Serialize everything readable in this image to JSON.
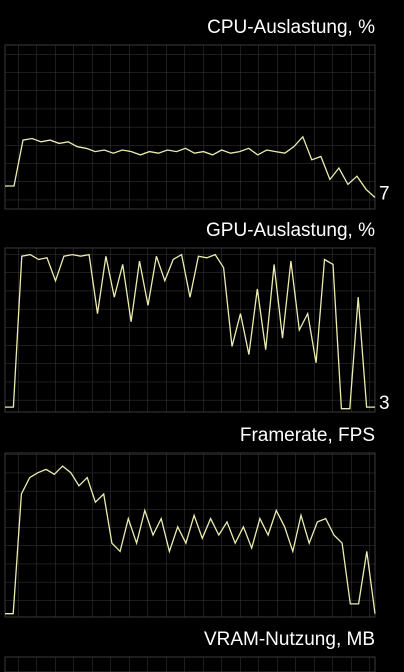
{
  "chart_data": [
    {
      "type": "line",
      "title": "CPU-Auslastung, %",
      "ylim": [
        0,
        100
      ],
      "color": "#ecebb0",
      "current_value_label": true,
      "values": [
        14,
        14,
        42,
        43,
        41,
        42,
        40,
        41,
        38,
        37,
        35,
        36,
        34,
        36,
        35,
        33,
        35,
        34,
        36,
        35,
        37,
        34,
        35,
        33,
        36,
        34,
        35,
        37,
        33,
        36,
        35,
        34,
        38,
        44,
        30,
        32,
        18,
        25,
        15,
        20,
        12,
        7
      ]
    },
    {
      "type": "line",
      "title": "GPU-Auslastung, %",
      "ylim": [
        0,
        100
      ],
      "color": "#ecebb0",
      "current_value_label": true,
      "values": [
        3,
        3,
        95,
        96,
        93,
        94,
        80,
        95,
        96,
        95,
        96,
        60,
        95,
        70,
        90,
        55,
        92,
        65,
        95,
        80,
        93,
        96,
        70,
        95,
        94,
        96,
        88,
        40,
        60,
        35,
        75,
        38,
        90,
        45,
        92,
        50,
        60,
        30,
        93,
        90,
        2,
        2,
        70,
        3,
        3
      ]
    },
    {
      "type": "line",
      "title": "Framerate, FPS",
      "ylim": [
        0,
        100
      ],
      "color": "#ecebb0",
      "current_value_label": false,
      "values": [
        2,
        2,
        75,
        85,
        88,
        90,
        87,
        92,
        88,
        80,
        85,
        70,
        75,
        45,
        40,
        60,
        45,
        65,
        50,
        60,
        40,
        55,
        45,
        62,
        48,
        60,
        50,
        58,
        45,
        55,
        42,
        60,
        50,
        65,
        55,
        40,
        62,
        45,
        58,
        60,
        50,
        45,
        8,
        8,
        40,
        2
      ]
    },
    {
      "type": "line",
      "title": "VRAM-Nutzung, MB",
      "ylim": [
        0,
        100
      ],
      "color": "#ecebb0",
      "current_value_label": false,
      "values": []
    }
  ]
}
